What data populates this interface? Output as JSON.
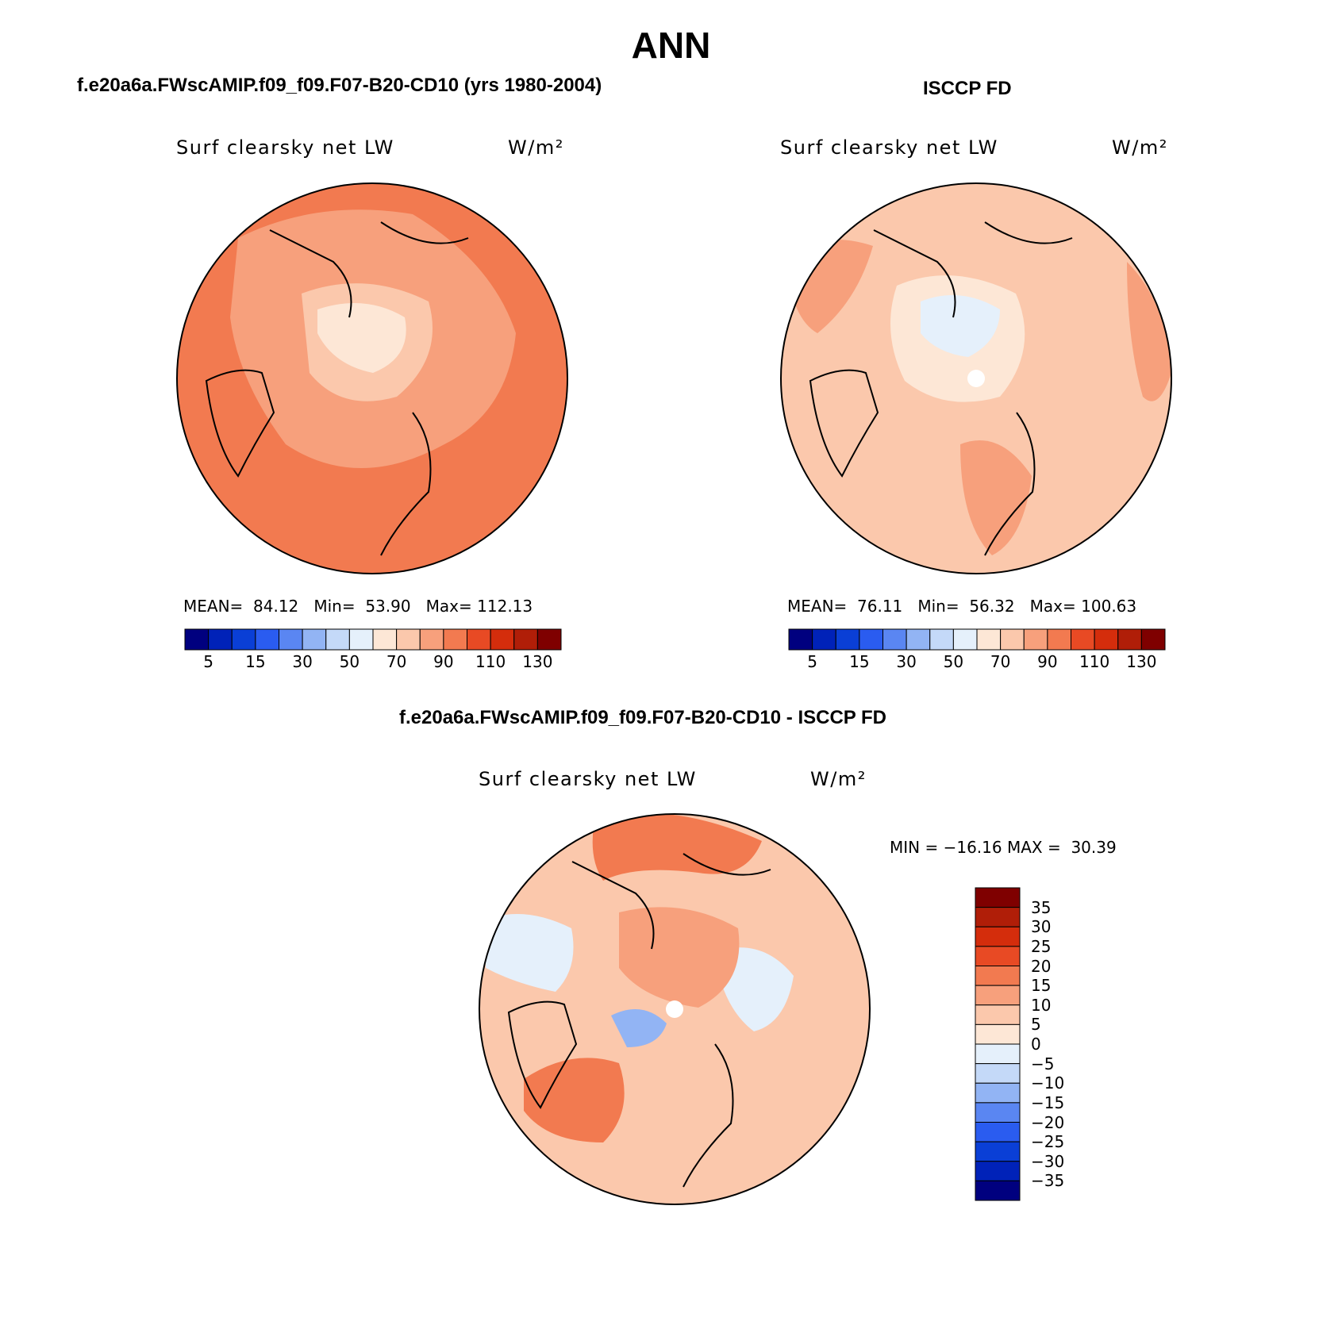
{
  "title": "ANN",
  "panels": [
    {
      "case_title": "f.e20a6a.FWscAMIP.f09_f09.F07-B20-CD10 (yrs 1980-2004)",
      "variable": "Surf clearsky net LW",
      "units": "W/m²",
      "mean_label": "MEAN=",
      "mean": "84.12",
      "min_label": "Min=",
      "min": "53.90",
      "max_label": "Max=",
      "max": "112.13"
    },
    {
      "case_title": "ISCCP FD",
      "variable": "Surf clearsky net LW",
      "units": "W/m²",
      "mean_label": "MEAN=",
      "mean": "76.11",
      "min_label": "Min=",
      "min": "56.32",
      "max_label": "Max=",
      "max": "100.63"
    },
    {
      "case_title": "f.e20a6a.FWscAMIP.f09_f09.F07-B20-CD10 - ISCCP FD",
      "variable": "Surf clearsky net LW",
      "units": "W/m²",
      "min_label": "MIN =",
      "min": "−16.16",
      "max_label": "MAX =",
      "max": "30.39"
    }
  ],
  "abs_colorbar": {
    "tick_labels": [
      "5",
      "15",
      "30",
      "50",
      "70",
      "90",
      "110",
      "130"
    ],
    "colors": [
      "#00007f",
      "#0022b8",
      "#0a3fd6",
      "#2a5cf0",
      "#5a86f2",
      "#92b4f4",
      "#c4d9f8",
      "#e5f0fb",
      "#fde7d6",
      "#fbc8ac",
      "#f7a07c",
      "#f27a50",
      "#e84a24",
      "#d42d0c",
      "#b01e08",
      "#7f0000"
    ]
  },
  "diff_colorbar": {
    "tick_labels": [
      "35",
      "30",
      "25",
      "20",
      "15",
      "10",
      "5",
      "0",
      "−5",
      "−10",
      "−15",
      "−20",
      "−25",
      "−30",
      "−35"
    ],
    "colors": [
      "#7f0000",
      "#b01e08",
      "#d42d0c",
      "#e84a24",
      "#f27a50",
      "#f7a07c",
      "#fbc8ac",
      "#fde7d6",
      "#e5f0fb",
      "#c4d9f8",
      "#92b4f4",
      "#5a86f2",
      "#2a5cf0",
      "#0a3fd6",
      "#0022b8",
      "#00007f"
    ]
  },
  "chart_data": {
    "type": "heatmap",
    "projection": "north polar stereographic",
    "season": "ANN",
    "variable": "Surf clearsky net LW",
    "units": "W/m²",
    "maps": [
      {
        "name": "f.e20a6a.FWscAMIP.f09_f09.F07-B20-CD10 (yrs 1980-2004)",
        "mean": 84.12,
        "min": 53.9,
        "max": 112.13
      },
      {
        "name": "ISCCP FD",
        "mean": 76.11,
        "min": 56.32,
        "max": 100.63
      },
      {
        "name": "f.e20a6a.FWscAMIP.f09_f09.F07-B20-CD10 - ISCCP FD",
        "min": -16.16,
        "max": 30.39
      }
    ],
    "abs_levels": [
      5,
      10,
      15,
      20,
      30,
      40,
      50,
      60,
      70,
      80,
      90,
      100,
      110,
      120,
      130
    ],
    "diff_levels": [
      -35,
      -30,
      -25,
      -20,
      -15,
      -10,
      -5,
      0,
      5,
      10,
      15,
      20,
      25,
      30,
      35
    ]
  }
}
